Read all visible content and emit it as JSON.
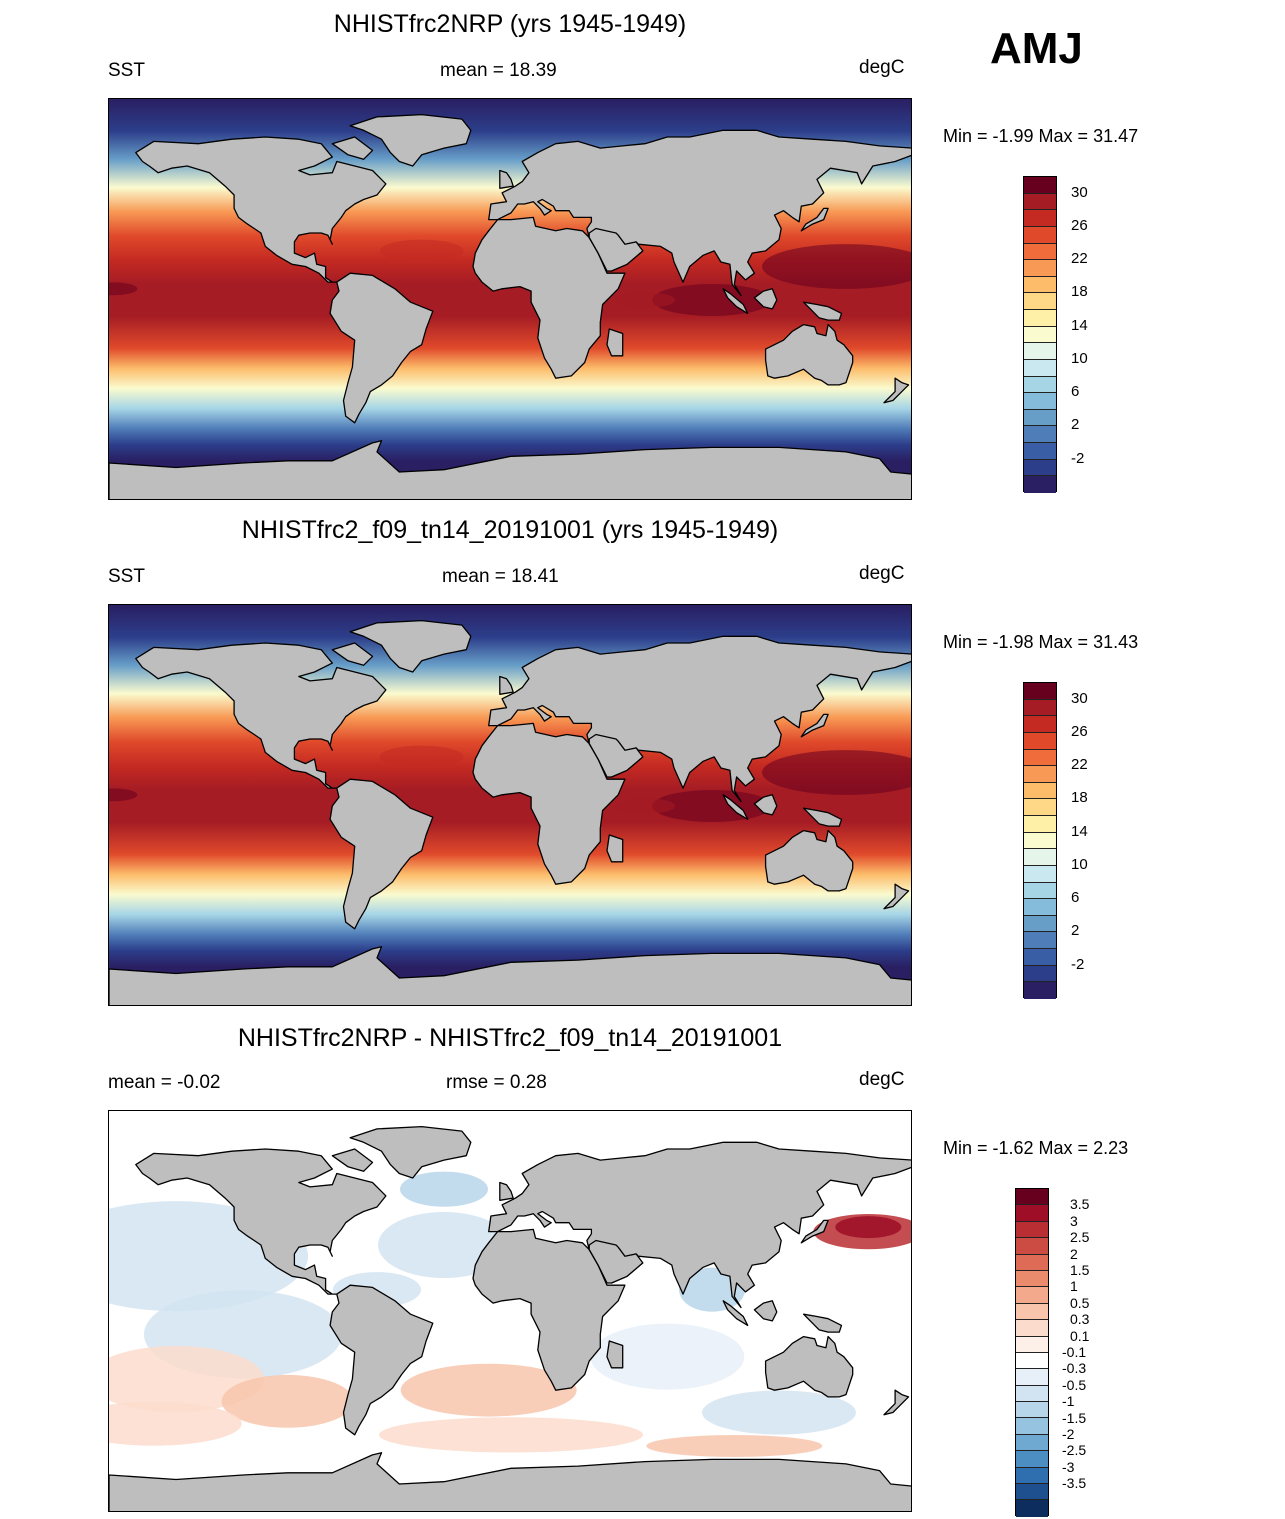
{
  "season": "AMJ",
  "panels": [
    {
      "title": "NHISTfrc2NRP (yrs 1945-1949)",
      "left_label": "SST",
      "center_label": "mean =  18.39",
      "right_label": "degC",
      "minmax": "Min =  -1.99 Max =  31.47",
      "kind": "sst"
    },
    {
      "title": "NHISTfrc2_f09_tn14_20191001 (yrs 1945-1949)",
      "left_label": "SST",
      "center_label": "mean =  18.41",
      "right_label": "degC",
      "minmax": "Min =  -1.98 Max =  31.43",
      "kind": "sst"
    },
    {
      "title": "NHISTfrc2NRP - NHISTfrc2_f09_tn14_20191001",
      "left_label": "mean =  -0.02",
      "center_label": "rmse =   0.28",
      "right_label": "degC",
      "minmax": "Min =  -1.62 Max =   2.23",
      "kind": "diff"
    }
  ],
  "sst_colorbar": {
    "labels": [
      "30",
      "26",
      "22",
      "18",
      "14",
      "10",
      "6",
      "2",
      "-2"
    ],
    "colors": [
      "#67001f",
      "#a51c24",
      "#c52a22",
      "#e04a2b",
      "#f06d3b",
      "#f89a55",
      "#fcbc6a",
      "#fed886",
      "#fff0a8",
      "#fafbcf",
      "#e6f5ea",
      "#c9e8f0",
      "#a6d5e6",
      "#85bcdb",
      "#679ec8",
      "#4f7db8",
      "#3a5ea6",
      "#2c3e8a",
      "#2a1f63"
    ]
  },
  "diff_colorbar": {
    "labels": [
      "3.5",
      "3",
      "2.5",
      "2",
      "1.5",
      "1",
      "0.5",
      "0.3",
      "0.1",
      "-0.1",
      "-0.3",
      "-0.5",
      "-1",
      "-1.5",
      "-2",
      "-2.5",
      "-3",
      "-3.5"
    ],
    "colors": [
      "#67001f",
      "#9e0e26",
      "#b82e33",
      "#cc4c44",
      "#dd6b55",
      "#ea8b6e",
      "#f3a98b",
      "#f8c5ac",
      "#fbdccc",
      "#fdf0e8",
      "#ffffff",
      "#e7f0f8",
      "#d2e4f1",
      "#b8d6ea",
      "#96c3e0",
      "#6fa8d1",
      "#4d8ec2",
      "#2f6fb0",
      "#1e4f8e",
      "#0d2d5e"
    ]
  },
  "land_color": "#bebebe"
}
